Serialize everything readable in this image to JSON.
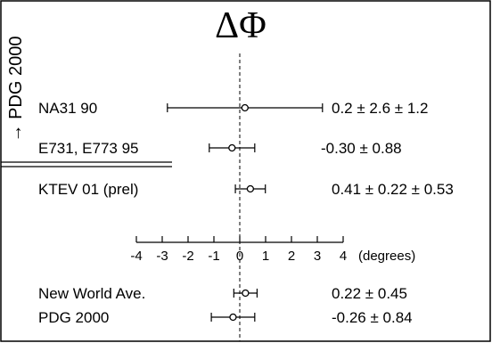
{
  "chart_data": {
    "type": "forest",
    "title": "ΔΦ",
    "side_label": "→ PDG 2000",
    "unit_label": "(degrees)",
    "xlim": [
      -4,
      4
    ],
    "ticks": [
      "-4",
      "-3",
      "-2",
      "-1",
      "0",
      "1",
      "2",
      "3",
      "4"
    ],
    "reference_line": 0,
    "measurements": [
      {
        "label": "NA31 90",
        "value": 0.2,
        "err_low": 3.0,
        "err_high": 3.0,
        "value_text": "0.2 ±  2.6 ± 1.2"
      },
      {
        "label": "E731, E773 95",
        "value": -0.3,
        "err_low": 0.88,
        "err_high": 0.88,
        "value_text": "-0.30 ±  0.88"
      },
      {
        "label": "KTEV 01 (prel)",
        "value": 0.41,
        "err_low": 0.58,
        "err_high": 0.58,
        "value_text": "0.41 ±  0.22 ± 0.53"
      }
    ],
    "averages": [
      {
        "label": "New World Ave.",
        "value": 0.22,
        "err_low": 0.45,
        "err_high": 0.45,
        "value_text": "0.22 ±  0.45"
      },
      {
        "label": "PDG 2000",
        "value": -0.26,
        "err_low": 0.84,
        "err_high": 0.84,
        "value_text": "-0.26 ±  0.84"
      }
    ]
  }
}
